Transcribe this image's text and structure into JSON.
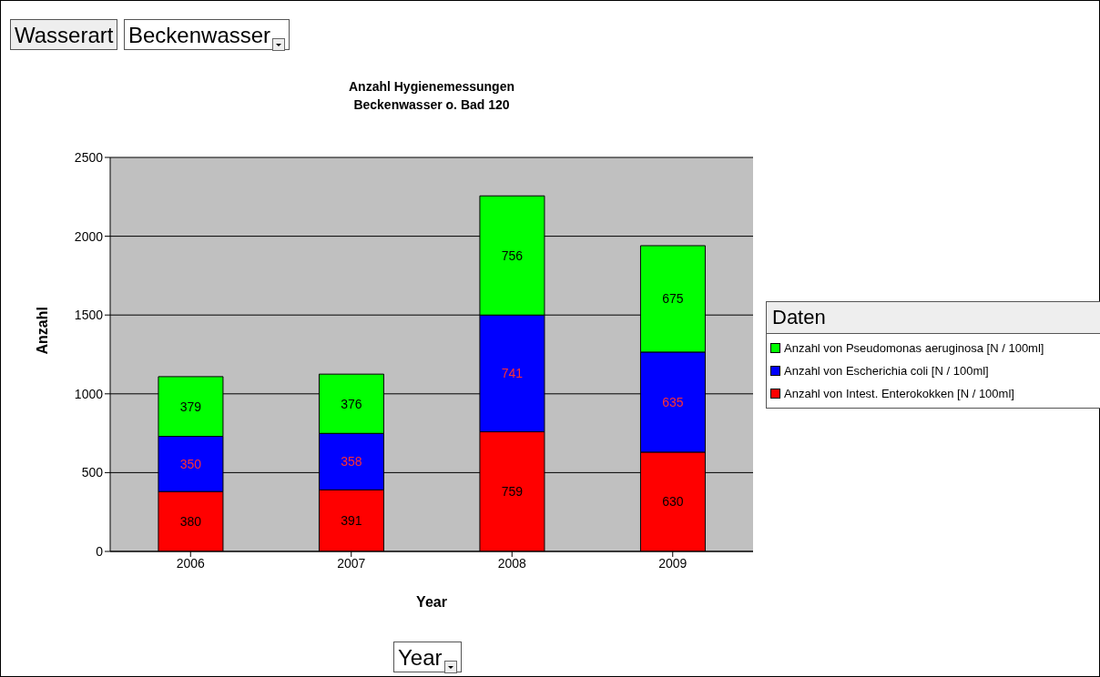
{
  "chart_data": {
    "type": "bar",
    "title": "Anzahl Hygienemessungen",
    "subtitle": "Beckenwasser o. Bad 120",
    "xlabel": "Year",
    "ylabel": "Anzahl",
    "legend_title": "Daten",
    "annotations": [
      "Wasserart",
      "Beckenwasser",
      "Year"
    ],
    "categories": [
      "2006",
      "2007",
      "2008",
      "2009"
    ],
    "series": [
      {
        "name": "Anzahl von Intest. Enterokokken [N / 100ml]",
        "color": "#ff0000",
        "values": [
          380,
          391,
          759,
          630
        ]
      },
      {
        "name": "Anzahl von Escherichia coli [N / 100ml]",
        "color": "#0000ff",
        "values": [
          350,
          358,
          741,
          635
        ]
      },
      {
        "name": "Anzahl von Pseudomonas aeruginosa [N / 100ml]",
        "color": "#00ff00",
        "values": [
          379,
          376,
          756,
          675
        ]
      }
    ],
    "stacked": true,
    "data_labels": true,
    "ylim": [
      0,
      2500
    ],
    "yticks": [
      0,
      500,
      1000,
      1500,
      2000,
      2500
    ],
    "grid": "y",
    "legend": "right"
  }
}
